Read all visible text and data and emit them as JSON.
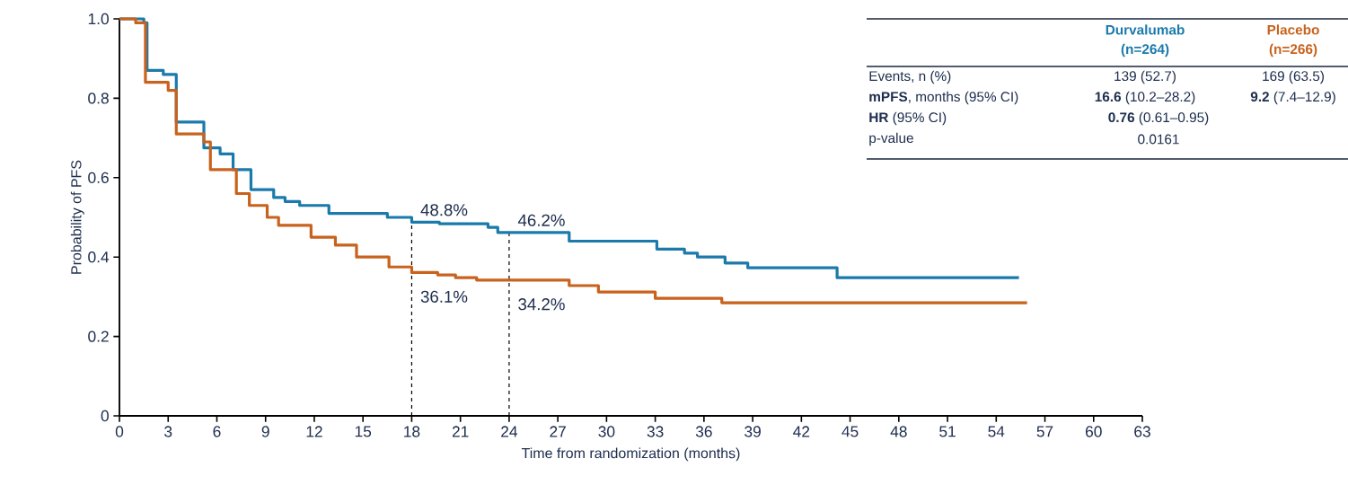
{
  "chart_data": {
    "type": "step",
    "xlabel": "Time from randomization (months)",
    "ylabel": "Probability of PFS",
    "xlim": [
      0,
      63
    ],
    "xticks": [
      0,
      3,
      6,
      9,
      12,
      15,
      18,
      21,
      24,
      27,
      30,
      33,
      36,
      39,
      42,
      45,
      48,
      51,
      54,
      57,
      60,
      63
    ],
    "ylim": [
      0,
      1
    ],
    "yticks": [
      0,
      0.2,
      0.4,
      0.6,
      0.8,
      {
        "value": 1,
        "label": "1.0"
      }
    ],
    "series": [
      {
        "name": "Durvalumab",
        "color": "#1a7aab",
        "x": [
          0,
          1.5,
          1.7,
          2.7,
          3.5,
          5.2,
          6.2,
          7.0,
          8.1,
          9.5,
          10.2,
          11.1,
          12.9,
          16.5,
          18,
          19.7,
          22.7,
          23.3,
          27.7,
          33.1,
          34.8,
          35.6,
          37.3,
          38.7,
          44.2,
          55.4
        ],
        "values": [
          1.0,
          0.99,
          0.87,
          0.86,
          0.74,
          0.675,
          0.66,
          0.62,
          0.57,
          0.55,
          0.54,
          0.53,
          0.51,
          0.5,
          0.488,
          0.484,
          0.475,
          0.462,
          0.44,
          0.42,
          0.41,
          0.4,
          0.385,
          0.373,
          0.348,
          0.348
        ]
      },
      {
        "name": "Placebo",
        "color": "#c8621c",
        "x": [
          0,
          1.0,
          1.6,
          3.0,
          3.5,
          5.2,
          5.6,
          7.2,
          8.0,
          9.1,
          9.8,
          11.8,
          13.3,
          14.6,
          16.6,
          18,
          19.6,
          20.7,
          22.0,
          27.7,
          29.5,
          33.0,
          37.1,
          55.9
        ],
        "values": [
          1.0,
          0.99,
          0.84,
          0.82,
          0.71,
          0.69,
          0.62,
          0.56,
          0.53,
          0.5,
          0.48,
          0.45,
          0.43,
          0.4,
          0.375,
          0.361,
          0.355,
          0.348,
          0.342,
          0.328,
          0.312,
          0.296,
          0.285,
          0.285
        ]
      }
    ],
    "ref_lines": [
      {
        "axis": "x",
        "value": 18,
        "color": "#000000",
        "line_style": "dashed"
      },
      {
        "axis": "x",
        "value": 24,
        "color": "#000000",
        "line_style": "dashed"
      }
    ],
    "annotations": [
      "48.8%",
      "36.1%",
      "46.2%",
      "34.2%",
      "(n=264)",
      "(n=266)",
      "Events, n (%)",
      "139 (52.7)",
      "169 (63.5)",
      "**mPFS**, months (95% CI)",
      "**16.6** (10.2–28.2)",
      "**9.2** (7.4–12.9)",
      "**HR** (95% CI)",
      "**0.76** (0.61–0.95)",
      "p-value",
      "0.0161"
    ]
  }
}
